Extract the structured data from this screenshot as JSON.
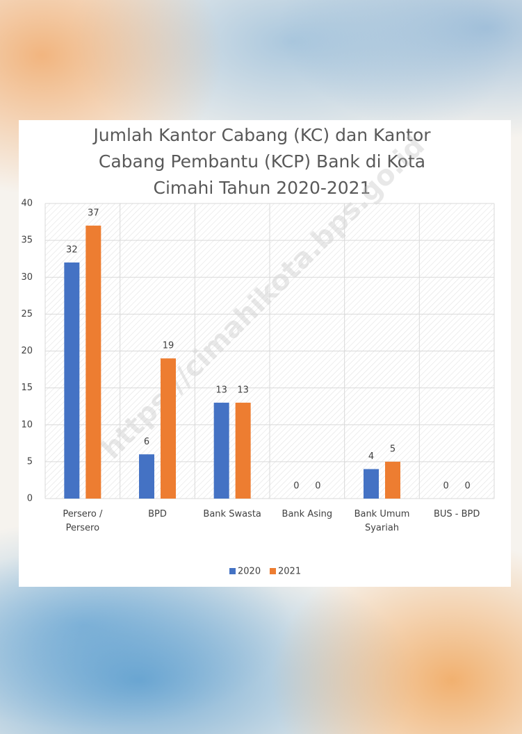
{
  "chart_data": {
    "type": "bar",
    "title": "Jumlah Kantor Cabang (KC) dan Kantor Cabang Pembantu (KCP) Bank di Kota Cimahi Tahun 2020-2021",
    "categories": [
      "Persero / Persero",
      "BPD",
      "Bank Swasta",
      "Bank Asing",
      "Bank Umum Syariah",
      "BUS - BPD"
    ],
    "series": [
      {
        "name": "2020",
        "color": "#4472c4",
        "values": [
          32,
          6,
          13,
          0,
          4,
          0
        ]
      },
      {
        "name": "2021",
        "color": "#ed7d31",
        "values": [
          37,
          19,
          13,
          0,
          5,
          0
        ]
      }
    ],
    "ylim": [
      0,
      40
    ],
    "yticks": [
      0,
      5,
      10,
      15,
      20,
      25,
      30,
      35,
      40
    ],
    "grid": true,
    "legend": "bottom",
    "watermark": "https://cimahikota.bps.go.id"
  }
}
